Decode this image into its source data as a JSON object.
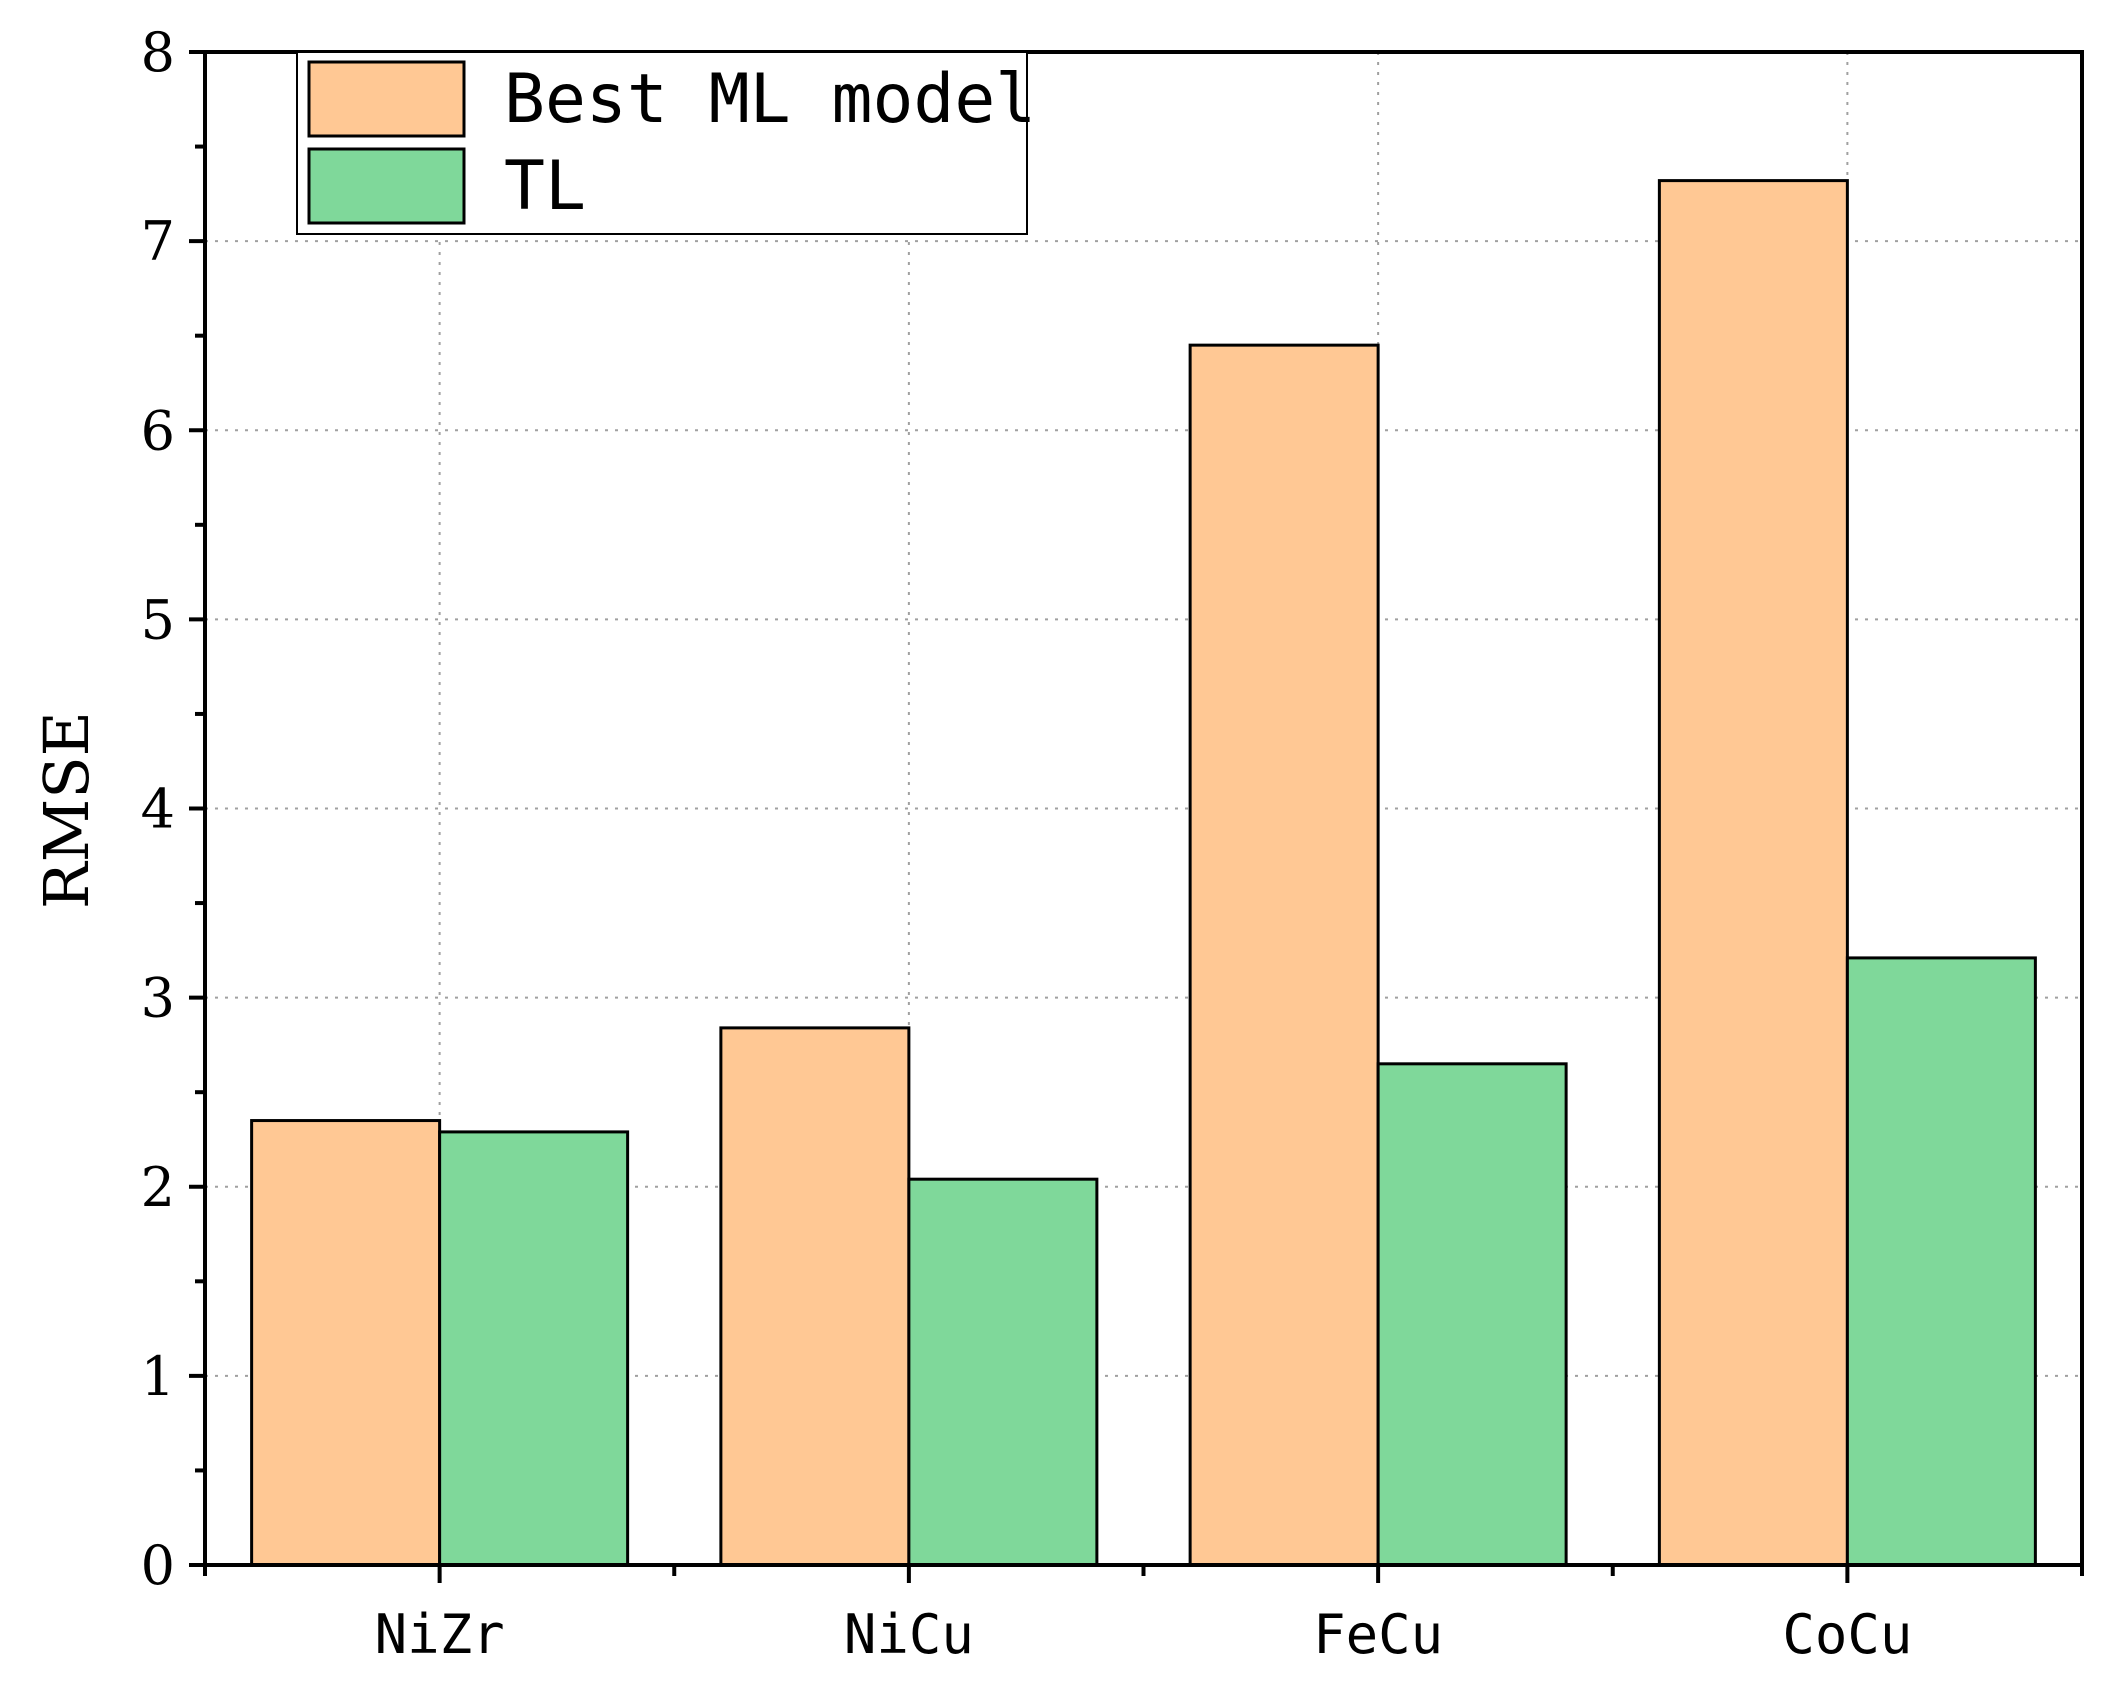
{
  "chart_data": {
    "type": "bar",
    "title": "",
    "xlabel": "",
    "ylabel": "RMSE",
    "ylim": [
      0,
      8
    ],
    "yticks": [
      0,
      1,
      2,
      3,
      4,
      5,
      6,
      7,
      8
    ],
    "grid": true,
    "legend_position": "top-left",
    "categories": [
      "NiZr",
      "NiCu",
      "FeCu",
      "CoCu"
    ],
    "series": [
      {
        "name": "Best ML model",
        "color": "#FFC894",
        "values": [
          2.35,
          2.84,
          6.45,
          7.32
        ]
      },
      {
        "name": "TL",
        "color": "#7FD89A",
        "values": [
          2.29,
          2.04,
          2.65,
          3.21
        ]
      }
    ]
  }
}
